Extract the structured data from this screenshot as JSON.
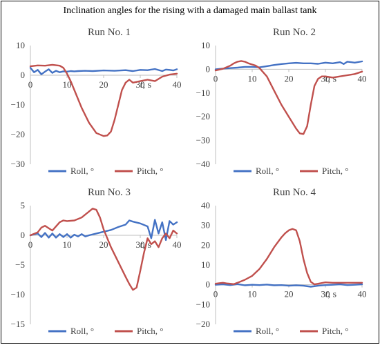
{
  "figure": {
    "title": "Inclination angles for the rising with a damaged main ballast tank"
  },
  "colors": {
    "roll": "#4472C4",
    "pitch": "#C0504D",
    "axis": "#BFBFBF",
    "text": "#404040"
  },
  "chart_data": [
    {
      "type": "line",
      "title": "Run No. 1",
      "xlabel": "t, s",
      "ylabel": "",
      "xlim": [
        0,
        40
      ],
      "ylim": [
        -30,
        10
      ],
      "xticks": [
        0,
        10,
        20,
        30,
        40
      ],
      "yticks": [
        10,
        0,
        -10,
        -20,
        -30
      ],
      "legend": "bottom",
      "grid": false,
      "series": [
        {
          "name": "Roll, °",
          "color": "#4472C4",
          "x": [
            0,
            1,
            2,
            3,
            4,
            5,
            6,
            7,
            8,
            9,
            10,
            11,
            12,
            13,
            15,
            17,
            20,
            23,
            26,
            28,
            30,
            32,
            34,
            36,
            37,
            38,
            39,
            40
          ],
          "y": [
            2.5,
            1.0,
            1.8,
            0.3,
            1.2,
            2.0,
            0.8,
            1.5,
            1.0,
            1.3,
            1.2,
            1.4,
            1.3,
            1.4,
            1.5,
            1.4,
            1.6,
            1.5,
            1.7,
            1.4,
            1.8,
            1.7,
            2.1,
            1.4,
            1.9,
            1.8,
            1.6,
            2.0
          ]
        },
        {
          "name": "Pitch, °",
          "color": "#C0504D",
          "x": [
            0,
            2,
            4,
            6,
            8,
            9,
            10,
            11,
            12,
            14,
            16,
            18,
            20,
            21,
            22,
            23,
            24,
            25,
            26,
            27,
            28,
            30,
            32,
            34,
            36,
            38,
            40
          ],
          "y": [
            3.0,
            3.3,
            3.2,
            3.5,
            3.2,
            2.5,
            0.5,
            -2,
            -5,
            -11,
            -16,
            -19.5,
            -20.5,
            -20.3,
            -19,
            -15,
            -10,
            -5,
            -2.5,
            -1.5,
            -2.5,
            -2,
            -1.5,
            -2,
            -0.5,
            0.2,
            0.5
          ]
        }
      ]
    },
    {
      "type": "line",
      "title": "Run No. 2",
      "xlabel": "t, s",
      "ylabel": "",
      "xlim": [
        0,
        40
      ],
      "ylim": [
        -40,
        10
      ],
      "xticks": [
        0,
        10,
        20,
        30,
        40
      ],
      "yticks": [
        10,
        0,
        -10,
        -20,
        -30,
        -40
      ],
      "legend": "bottom",
      "grid": false,
      "series": [
        {
          "name": "Roll, °",
          "color": "#4472C4",
          "x": [
            0,
            2,
            4,
            6,
            8,
            10,
            12,
            14,
            16,
            18,
            20,
            22,
            24,
            26,
            28,
            30,
            32,
            34,
            35,
            36,
            38,
            40
          ],
          "y": [
            0,
            0.3,
            0.5,
            0.7,
            1.0,
            1.0,
            0.8,
            1.3,
            1.8,
            2.2,
            2.5,
            2.7,
            2.5,
            2.5,
            2.3,
            2.8,
            2.5,
            3.0,
            2.2,
            3.2,
            2.8,
            3.3
          ]
        },
        {
          "name": "Pitch, °",
          "color": "#C0504D",
          "x": [
            0,
            2,
            4,
            5,
            6,
            7,
            8,
            9,
            10,
            11,
            12,
            14,
            16,
            18,
            20,
            22,
            23,
            24,
            25,
            26,
            27,
            28,
            29,
            30,
            32,
            34,
            36,
            38,
            40
          ],
          "y": [
            -0.5,
            0.2,
            1.5,
            2.5,
            3.2,
            3.5,
            3.2,
            2.5,
            2.0,
            1.5,
            0.5,
            -3,
            -9,
            -15,
            -20,
            -25,
            -27,
            -27.3,
            -24,
            -15,
            -7,
            -4,
            -3,
            -3,
            -3.5,
            -3,
            -2.5,
            -2,
            -1
          ]
        }
      ]
    },
    {
      "type": "line",
      "title": "Run No. 3",
      "xlabel": "t, s",
      "ylabel": "",
      "xlim": [
        0,
        40
      ],
      "ylim": [
        -15,
        5
      ],
      "xticks": [
        0,
        10,
        20,
        30,
        40
      ],
      "yticks": [
        5,
        0,
        -5,
        -10,
        -15
      ],
      "legend": "bottom",
      "grid": false,
      "series": [
        {
          "name": "Roll, °",
          "color": "#4472C4",
          "x": [
            0,
            2,
            3,
            4,
            5,
            6,
            7,
            8,
            9,
            10,
            11,
            12,
            13,
            14,
            15,
            16,
            18,
            20,
            22,
            24,
            26,
            27,
            28,
            30,
            32,
            33,
            34,
            35,
            36,
            37,
            38,
            39,
            40
          ],
          "y": [
            0,
            0.3,
            -0.3,
            0.4,
            -0.4,
            0.3,
            -0.4,
            0.2,
            -0.3,
            0.2,
            -0.4,
            0.1,
            -0.2,
            0.2,
            -0.2,
            0.0,
            0.3,
            0.6,
            0.9,
            1.4,
            1.8,
            2.5,
            2.3,
            2.0,
            1.5,
            -0.5,
            2.6,
            0.3,
            2.2,
            -0.8,
            2.4,
            1.8,
            2.2
          ]
        },
        {
          "name": "Pitch, °",
          "color": "#C0504D",
          "x": [
            0,
            2,
            3,
            4,
            5,
            6,
            7,
            8,
            9,
            10,
            12,
            14,
            16,
            17,
            18,
            19,
            20,
            21,
            22,
            24,
            26,
            27,
            28,
            29,
            30,
            31,
            32,
            33,
            34,
            35,
            36,
            37,
            38,
            39,
            40
          ],
          "y": [
            0,
            0.5,
            1.3,
            1.6,
            1.2,
            0.8,
            1.5,
            2.2,
            2.5,
            2.4,
            2.5,
            3.0,
            4.0,
            4.5,
            4.3,
            3.0,
            1.0,
            -0.5,
            -2,
            -4.5,
            -7,
            -8.2,
            -9.2,
            -8.8,
            -6,
            -3,
            -0.5,
            -1.5,
            -1,
            -2,
            -0.5,
            0.3,
            -0.5,
            0.8,
            0.3
          ]
        }
      ]
    },
    {
      "type": "line",
      "title": "Run No. 4",
      "xlabel": "t, s",
      "ylabel": "",
      "xlim": [
        0,
        40
      ],
      "ylim": [
        -20,
        40
      ],
      "xticks": [
        0,
        10,
        20,
        30,
        40
      ],
      "yticks": [
        40,
        30,
        20,
        10,
        0,
        -10,
        -20
      ],
      "legend": "bottom",
      "grid": false,
      "series": [
        {
          "name": "Roll, °",
          "color": "#4472C4",
          "x": [
            0,
            2,
            4,
            6,
            8,
            10,
            12,
            14,
            16,
            18,
            20,
            22,
            24,
            26,
            28,
            30,
            32,
            34,
            36,
            38,
            40
          ],
          "y": [
            0,
            0.2,
            -0.2,
            0.3,
            -0.3,
            0,
            -0.2,
            0.1,
            -0.3,
            -0.2,
            -0.5,
            -0.3,
            -0.5,
            -1,
            -0.5,
            -0.2,
            0,
            0.2,
            -0.2,
            0,
            0.2
          ]
        },
        {
          "name": "Pitch, °",
          "color": "#C0504D",
          "x": [
            0,
            1,
            2,
            3,
            4,
            5,
            6,
            8,
            10,
            12,
            14,
            16,
            18,
            19,
            20,
            21,
            22,
            23,
            24,
            25,
            26,
            27,
            28,
            30,
            32,
            34,
            36,
            38,
            40
          ],
          "y": [
            0.5,
            0.8,
            1.0,
            0.7,
            0.5,
            0.3,
            1.0,
            2.5,
            4.5,
            8,
            13,
            19,
            24,
            26,
            27.5,
            28.2,
            27.5,
            22,
            13,
            6,
            1.5,
            0.2,
            0.5,
            1.2,
            1.0,
            1.0,
            1.0,
            1.0,
            1.0
          ]
        }
      ]
    }
  ]
}
